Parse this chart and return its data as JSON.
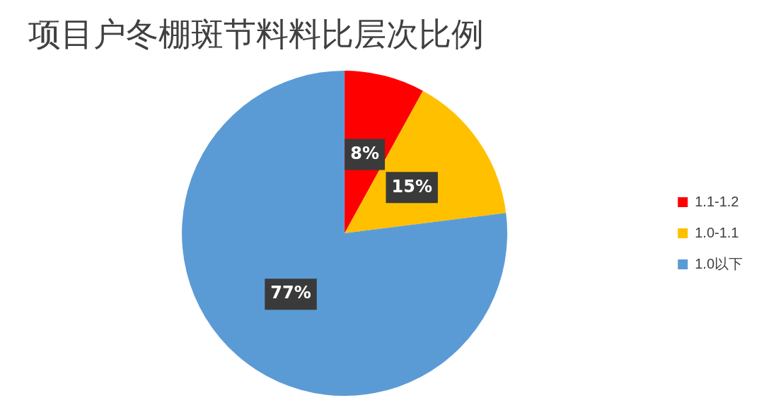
{
  "chart_data": {
    "type": "pie",
    "title": "项目户冬棚斑节料料比层次比例",
    "categories": [
      "1.1-1.2",
      "1.0-1.1",
      "1.0以下"
    ],
    "values": [
      8,
      15,
      77
    ],
    "colors": [
      "#ff0000",
      "#ffc000",
      "#5b9bd5"
    ],
    "value_labels": [
      "8%",
      "15%",
      "77%"
    ],
    "legend": "right"
  }
}
